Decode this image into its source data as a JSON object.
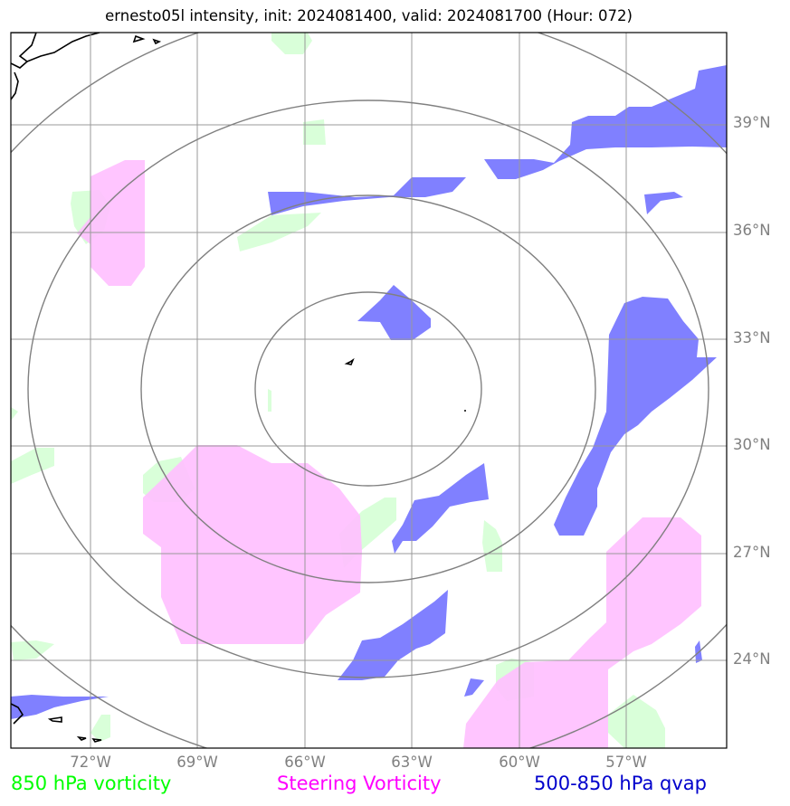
{
  "title": "ernesto05l intensity, init: 2024081400, valid: 2024081700 (Hour: 072)",
  "longitude_labels": [
    "72°W",
    "69°W",
    "66°W",
    "63°W",
    "60°W",
    "57°W"
  ],
  "latitude_labels": [
    "39°N",
    "36°N",
    "33°N",
    "30°N",
    "27°N",
    "24°N"
  ],
  "legend": {
    "vorticity_850": {
      "label": "850 hPa vorticity",
      "color": "#00ff00"
    },
    "steering": {
      "label": "Steering Vorticity",
      "color": "#ff00ff"
    },
    "qvap": {
      "label": "500-850 hPa qvap",
      "color": "#0000cc"
    }
  },
  "fill_colors": {
    "vorticity_850": "#d9ffd9",
    "steering": "#ffbfff",
    "qvap": "#8080ff"
  },
  "range_ring_count": 4,
  "grid": "on"
}
